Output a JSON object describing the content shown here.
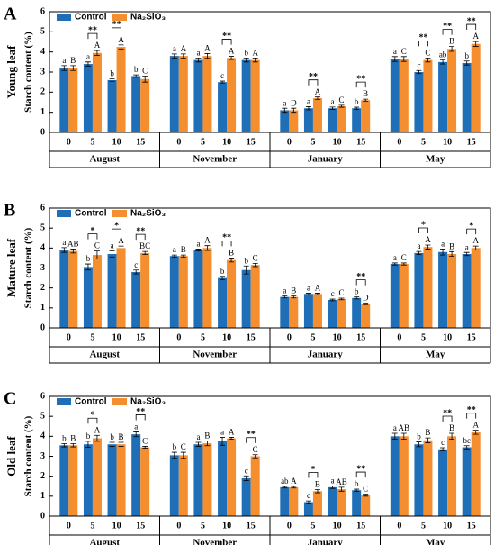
{
  "chart_data": [
    {
      "type": "bar",
      "panel": "A",
      "row_label": "Young leaf",
      "ylabel": "Starch content (%)",
      "groups": [
        "August",
        "November",
        "January",
        "May"
      ],
      "categories": [
        "0",
        "5",
        "10",
        "15",
        "0",
        "5",
        "10",
        "15",
        "0",
        "5",
        "10",
        "15",
        "0",
        "5",
        "10",
        "15"
      ],
      "ylim": [
        0,
        6
      ],
      "yticks": [
        0,
        1,
        2,
        3,
        4,
        5,
        6
      ],
      "series": [
        {
          "name": "Control",
          "color": "#1f6fb8",
          "values": [
            3.2,
            3.4,
            2.6,
            2.8,
            3.8,
            3.6,
            2.5,
            3.6,
            1.1,
            1.2,
            1.2,
            1.2,
            3.65,
            3.0,
            3.5,
            3.45
          ],
          "errors": [
            0.12,
            0.1,
            0.06,
            0.06,
            0.1,
            0.1,
            0.05,
            0.1,
            0.1,
            0.08,
            0.06,
            0.05,
            0.12,
            0.08,
            0.1,
            0.1
          ],
          "letters": [
            "a",
            "a",
            "b",
            "b",
            "a",
            "a",
            "c",
            "b",
            "a",
            "a",
            "a",
            "b",
            "a",
            "c",
            "ab",
            "b"
          ]
        },
        {
          "name": "Na₂SiO₃",
          "color": "#f58e2f",
          "values": [
            3.2,
            3.95,
            4.25,
            2.65,
            3.8,
            3.8,
            3.7,
            3.6,
            1.1,
            1.7,
            1.3,
            1.6,
            3.65,
            3.6,
            4.15,
            4.4
          ],
          "errors": [
            0.12,
            0.12,
            0.1,
            0.15,
            0.1,
            0.12,
            0.08,
            0.1,
            0.1,
            0.06,
            0.05,
            0.05,
            0.12,
            0.1,
            0.12,
            0.12
          ],
          "letters": [
            "B",
            "A",
            "A",
            "C",
            "A",
            "A",
            "A",
            "A",
            "D",
            "A",
            "C",
            "B",
            "C",
            "C",
            "B",
            "A"
          ]
        }
      ],
      "significance": [
        {
          "category": 1,
          "label": "**"
        },
        {
          "category": 2,
          "label": "**"
        },
        {
          "category": 6,
          "label": "**"
        },
        {
          "category": 9,
          "label": "**"
        },
        {
          "category": 11,
          "label": "**"
        },
        {
          "category": 13,
          "label": "**"
        },
        {
          "category": 14,
          "label": "**"
        },
        {
          "category": 15,
          "label": "**"
        }
      ]
    },
    {
      "type": "bar",
      "panel": "B",
      "row_label": "Mature leaf",
      "ylabel": "Starch content (%)",
      "groups": [
        "August",
        "November",
        "January",
        "May"
      ],
      "categories": [
        "0",
        "5",
        "10",
        "15",
        "0",
        "5",
        "10",
        "15",
        "0",
        "5",
        "10",
        "15",
        "0",
        "5",
        "10",
        "15"
      ],
      "ylim": [
        0,
        6
      ],
      "yticks": [
        0,
        1,
        2,
        3,
        4,
        5,
        6
      ],
      "series": [
        {
          "name": "Control",
          "color": "#1f6fb8",
          "values": [
            3.9,
            3.05,
            3.7,
            2.8,
            3.6,
            3.9,
            2.5,
            2.9,
            1.55,
            1.7,
            1.4,
            1.5,
            3.2,
            3.75,
            3.8,
            3.7
          ],
          "errors": [
            0.12,
            0.15,
            0.15,
            0.1,
            0.05,
            0.05,
            0.08,
            0.2,
            0.05,
            0.04,
            0.04,
            0.05,
            0.05,
            0.08,
            0.15,
            0.08
          ],
          "letters": [
            "a",
            "b",
            "a",
            "c",
            "a",
            "a",
            "b",
            "b",
            "a",
            "a",
            "c",
            "b",
            "a",
            "a",
            "a",
            "a"
          ]
        },
        {
          "name": "Na₂SiO₃",
          "color": "#f58e2f",
          "values": [
            3.85,
            3.65,
            4.0,
            3.75,
            3.6,
            4.0,
            3.4,
            3.15,
            1.55,
            1.7,
            1.45,
            1.2,
            3.2,
            4.05,
            3.7,
            4.0
          ],
          "errors": [
            0.1,
            0.2,
            0.1,
            0.08,
            0.05,
            0.12,
            0.1,
            0.08,
            0.05,
            0.04,
            0.04,
            0.04,
            0.05,
            0.1,
            0.12,
            0.1
          ],
          "letters": [
            "AB",
            "C",
            "A",
            "BC",
            "B",
            "A",
            "B",
            "C",
            "B",
            "A",
            "C",
            "D",
            "C",
            "A",
            "B",
            "A"
          ]
        }
      ],
      "significance": [
        {
          "category": 1,
          "label": "*"
        },
        {
          "category": 2,
          "label": "*"
        },
        {
          "category": 3,
          "label": "**"
        },
        {
          "category": 6,
          "label": "**"
        },
        {
          "category": 11,
          "label": "**"
        },
        {
          "category": 13,
          "label": "*"
        },
        {
          "category": 15,
          "label": "*"
        }
      ]
    },
    {
      "type": "bar",
      "panel": "C",
      "row_label": "Old leaf",
      "ylabel": "Starch content (%)",
      "groups": [
        "August",
        "November",
        "January",
        "May"
      ],
      "categories": [
        "0",
        "5",
        "10",
        "15",
        "0",
        "5",
        "10",
        "15",
        "0",
        "5",
        "10",
        "15",
        "0",
        "5",
        "10",
        "15"
      ],
      "ylim": [
        0,
        6
      ],
      "yticks": [
        0,
        1,
        2,
        3,
        4,
        5,
        6
      ],
      "series": [
        {
          "name": "Control",
          "color": "#1f6fb8",
          "values": [
            3.55,
            3.6,
            3.6,
            4.1,
            3.05,
            3.6,
            3.75,
            1.9,
            1.45,
            0.7,
            1.45,
            1.3,
            4.0,
            3.6,
            3.35,
            3.45
          ],
          "errors": [
            0.08,
            0.15,
            0.1,
            0.12,
            0.15,
            0.1,
            0.2,
            0.12,
            0.04,
            0.06,
            0.06,
            0.05,
            0.15,
            0.12,
            0.08,
            0.08
          ],
          "letters": [
            "b",
            "b",
            "b",
            "a",
            "b",
            "a",
            "a",
            "c",
            "ab",
            "c",
            "a",
            "b",
            "a",
            "b",
            "c",
            "bc"
          ]
        },
        {
          "name": "Na₂SiO₃",
          "color": "#f58e2f",
          "values": [
            3.55,
            3.9,
            3.6,
            3.45,
            3.05,
            3.65,
            3.9,
            3.0,
            1.45,
            1.25,
            1.35,
            1.05,
            4.0,
            3.8,
            4.0,
            4.2
          ],
          "errors": [
            0.08,
            0.15,
            0.1,
            0.05,
            0.15,
            0.12,
            0.05,
            0.08,
            0.04,
            0.08,
            0.1,
            0.05,
            0.15,
            0.12,
            0.15,
            0.1
          ],
          "letters": [
            "B",
            "A",
            "B",
            "C",
            "C",
            "B",
            "A",
            "C",
            "A",
            "B",
            "AB",
            "C",
            "AB",
            "B",
            "B",
            "A"
          ]
        }
      ],
      "significance": [
        {
          "category": 1,
          "label": "*"
        },
        {
          "category": 3,
          "label": "**"
        },
        {
          "category": 7,
          "label": "**"
        },
        {
          "category": 9,
          "label": "*"
        },
        {
          "category": 11,
          "label": "**"
        },
        {
          "category": 14,
          "label": "**"
        },
        {
          "category": 15,
          "label": "**"
        }
      ]
    }
  ]
}
